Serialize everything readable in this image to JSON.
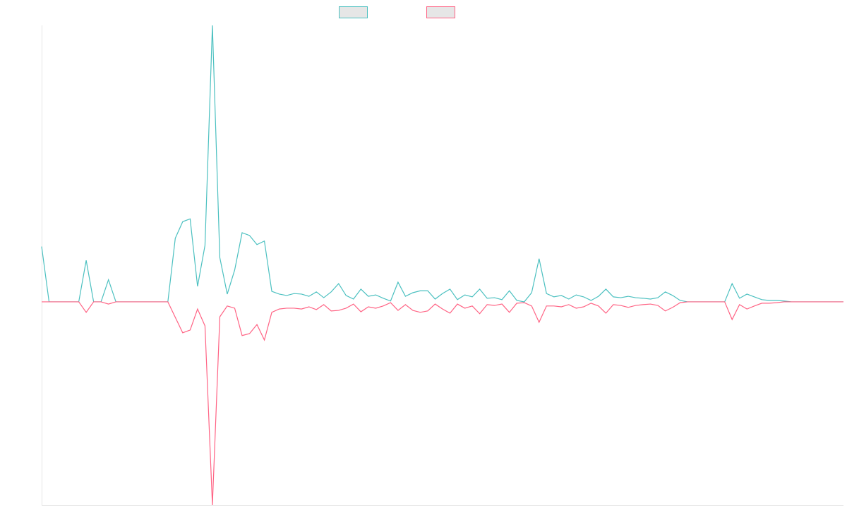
{
  "chart_data": {
    "type": "line",
    "categories": [
      null,
      null,
      null,
      null,
      null,
      null,
      null,
      null,
      null,
      null,
      null,
      null,
      null,
      null,
      null,
      null,
      null,
      null,
      null,
      null,
      null,
      null,
      null,
      null,
      null,
      null,
      null,
      null,
      null,
      null,
      null,
      null,
      null,
      null,
      null,
      null,
      null,
      null,
      null,
      null,
      null,
      null,
      null,
      null,
      null,
      null,
      null,
      null,
      null,
      null,
      null,
      null,
      null,
      null,
      null,
      null,
      null,
      null,
      null,
      null,
      null,
      null,
      null,
      null,
      null,
      null,
      null,
      null,
      null,
      null,
      null,
      null,
      null,
      null,
      null,
      null,
      null,
      null,
      null,
      null,
      null,
      null,
      null,
      null,
      null,
      null,
      null,
      null,
      null,
      null,
      null,
      null,
      null,
      null,
      null,
      null,
      null,
      null,
      null,
      null,
      null,
      null,
      null,
      null,
      null,
      null,
      null,
      null,
      null
    ],
    "series": [
      {
        "color": "#4bc0c0",
        "values": [
          20,
          0,
          0,
          0,
          0,
          0,
          15,
          0,
          0,
          8,
          0,
          0,
          0,
          0,
          0,
          0,
          0,
          0,
          23,
          29,
          30,
          5.6,
          20.4,
          100,
          16,
          2.8,
          11.5,
          25,
          24,
          20.7,
          22,
          3.8,
          2.8,
          2.3,
          3,
          2.8,
          2,
          3.6,
          1.5,
          3.6,
          6.6,
          2.3,
          1,
          4.6,
          2,
          2.5,
          1.3,
          0.3,
          7.1,
          2,
          3.3,
          4,
          4,
          1,
          3,
          4.6,
          0.8,
          2.5,
          1.8,
          4.6,
          1.3,
          1.5,
          0.8,
          4,
          0.5,
          0,
          3.3,
          15.6,
          3,
          1.8,
          2.3,
          1,
          2.5,
          1.8,
          0.5,
          2,
          4.6,
          1.8,
          1.5,
          2,
          1.5,
          1.3,
          1,
          1.5,
          3.6,
          2.3,
          0.5,
          0,
          0,
          0,
          0,
          0,
          0,
          6.6,
          1.3,
          2.8,
          1.8,
          0.8,
          0.5,
          0.5,
          0.3,
          0,
          0,
          0,
          0,
          0,
          0,
          0,
          0
        ]
      },
      {
        "color": "#ff6384",
        "values": [
          0,
          0,
          0,
          0,
          0,
          0,
          -3.8,
          0,
          0,
          -0.8,
          0,
          0,
          0,
          0,
          0,
          0,
          0,
          0,
          -5.6,
          -11.2,
          -10.2,
          -2.6,
          -8.7,
          -73.5,
          -5.4,
          -1.5,
          -2.3,
          -12.2,
          -11.5,
          -8.2,
          -13.8,
          -3.8,
          -2.6,
          -2.3,
          -2.3,
          -2.6,
          -1.8,
          -2.8,
          -1,
          -3.3,
          -3.1,
          -2.3,
          -0.8,
          -3.6,
          -1.8,
          -2.3,
          -1.5,
          -0.3,
          -3.1,
          -1,
          -3.1,
          -3.8,
          -3.3,
          -0.8,
          -2.6,
          -4.1,
          -0.8,
          -2.3,
          -1.5,
          -4.3,
          -1,
          -1.3,
          -0.8,
          -3.8,
          -0.5,
          -0.3,
          -1.5,
          -7.4,
          -1.5,
          -1.5,
          -1.8,
          -1,
          -2.3,
          -1.8,
          -0.5,
          -1.5,
          -4.1,
          -1,
          -1.3,
          -2,
          -1.3,
          -1,
          -0.8,
          -1.3,
          -3.3,
          -2,
          -0.3,
          0,
          0,
          0,
          0,
          0,
          0,
          -6.4,
          -1,
          -2.6,
          -1.5,
          -0.5,
          -0.5,
          -0.3,
          0,
          0,
          0,
          0,
          0,
          0,
          0,
          0,
          0
        ]
      }
    ],
    "ylim": [
      -73.5,
      100
    ]
  }
}
